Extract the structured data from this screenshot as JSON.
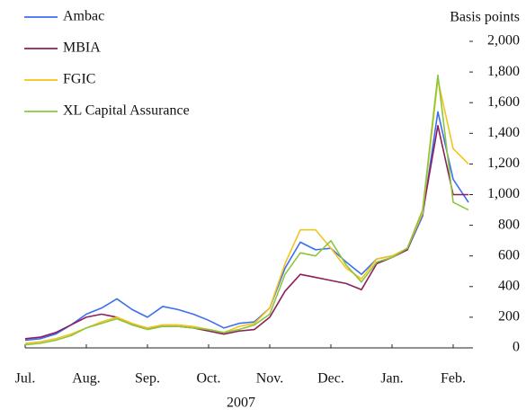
{
  "chart_data": {
    "type": "line",
    "y_axis_label": "Basis points",
    "x_annotation": "2007",
    "categories": [
      "Jul.",
      null,
      null,
      null,
      "Aug.",
      null,
      null,
      null,
      "Sep.",
      null,
      null,
      null,
      "Oct.",
      null,
      null,
      null,
      "Nov.",
      null,
      null,
      null,
      "Dec.",
      null,
      null,
      null,
      "Jan.",
      null,
      null,
      null,
      "Feb.",
      null
    ],
    "series": [
      {
        "name": "Ambac",
        "color": "#3c6ef0",
        "values": [
          50,
          60,
          90,
          150,
          220,
          260,
          320,
          250,
          200,
          270,
          250,
          220,
          180,
          130,
          160,
          170,
          260,
          520,
          690,
          640,
          650,
          560,
          480,
          580,
          600,
          640,
          860,
          1540,
          1100,
          950
        ]
      },
      {
        "name": "MBIA",
        "color": "#8b1f5c",
        "values": [
          60,
          70,
          100,
          150,
          200,
          220,
          200,
          150,
          130,
          140,
          140,
          130,
          110,
          90,
          110,
          120,
          200,
          370,
          480,
          460,
          440,
          420,
          380,
          550,
          590,
          640,
          880,
          1450,
          1000,
          1000
        ]
      },
      {
        "name": "FGIC",
        "color": "#f4c41c",
        "values": [
          30,
          40,
          60,
          90,
          130,
          170,
          200,
          160,
          130,
          150,
          150,
          140,
          120,
          100,
          140,
          160,
          260,
          550,
          770,
          770,
          650,
          520,
          450,
          580,
          600,
          650,
          880,
          1750,
          1300,
          1200
        ]
      },
      {
        "name": "XL Capital Assurance",
        "color": "#8cc63f",
        "values": [
          20,
          30,
          50,
          80,
          130,
          160,
          190,
          150,
          120,
          140,
          140,
          130,
          120,
          100,
          120,
          150,
          220,
          480,
          620,
          600,
          700,
          540,
          430,
          560,
          590,
          650,
          900,
          1780,
          950,
          900
        ]
      }
    ],
    "ylim": [
      0,
      2000
    ],
    "yticks": [
      0,
      200,
      400,
      600,
      800,
      {
        "value": 1000,
        "label": "1,000"
      },
      {
        "value": 1200,
        "label": "1,200"
      },
      {
        "value": 1400,
        "label": "1,400"
      },
      {
        "value": 1600,
        "label": "1,600"
      },
      {
        "value": 1800,
        "label": "1,800"
      },
      {
        "value": 2000,
        "label": "2,000"
      }
    ],
    "grid": false,
    "legend": "upper left"
  }
}
